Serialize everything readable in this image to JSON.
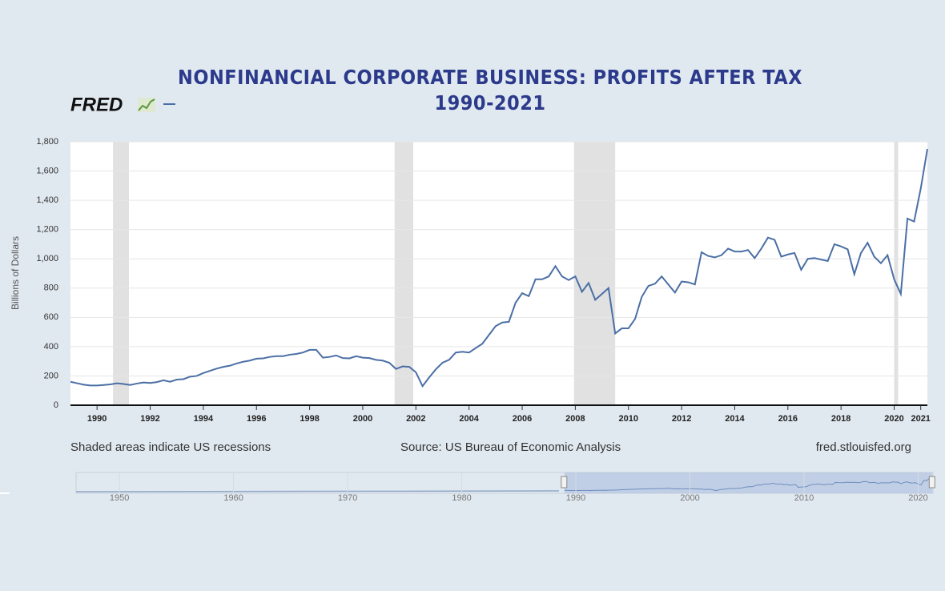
{
  "logo": "FRED",
  "chart_data": {
    "type": "line",
    "title": "NONFINANCIAL CORPORATE BUSINESS: PROFITS AFTER TAX",
    "subtitle": "1990-2021",
    "y_label": "Billions of Dollars",
    "note": "Shaded areas indicate US recessions",
    "source": "Source: US Bureau of Economic Analysis",
    "site": "fred.stlouisfed.org",
    "xlim": [
      1989,
      2021.25
    ],
    "ylim": [
      0,
      1800
    ],
    "yticks": [
      0,
      200,
      400,
      600,
      800,
      {
        "value": 1000,
        "label": "1,000"
      },
      {
        "value": 1200,
        "label": "1,200"
      },
      {
        "value": 1400,
        "label": "1,400"
      },
      {
        "value": 1600,
        "label": "1,600"
      },
      {
        "value": 1800,
        "label": "1,800"
      }
    ],
    "xticks": [
      1990,
      1992,
      1994,
      1996,
      1998,
      2000,
      2002,
      2004,
      2006,
      2008,
      2010,
      2012,
      2014,
      2016,
      2018,
      2020,
      2021
    ],
    "grid": true,
    "recessions": [
      [
        1990.6,
        1991.2
      ],
      [
        2001.2,
        2001.9
      ],
      [
        2007.95,
        2009.5
      ],
      [
        2020.0,
        2020.15
      ]
    ],
    "recession_color": "#e1e1e1",
    "x": [
      1989,
      1989.25,
      1989.5,
      1989.75,
      1990,
      1990.25,
      1990.5,
      1990.75,
      1991,
      1991.25,
      1991.5,
      1991.75,
      1992,
      1992.25,
      1992.5,
      1992.75,
      1993,
      1993.25,
      1993.5,
      1993.75,
      1994,
      1994.25,
      1994.5,
      1994.75,
      1995,
      1995.25,
      1995.5,
      1995.75,
      1996,
      1996.25,
      1996.5,
      1996.75,
      1997,
      1997.25,
      1997.5,
      1997.75,
      1998,
      1998.25,
      1998.5,
      1998.75,
      1999,
      1999.25,
      1999.5,
      1999.75,
      2000,
      2000.25,
      2000.5,
      2000.75,
      2001,
      2001.25,
      2001.5,
      2001.75,
      2002,
      2002.25,
      2002.5,
      2002.75,
      2003,
      2003.25,
      2003.5,
      2003.75,
      2004,
      2004.25,
      2004.5,
      2004.75,
      2005,
      2005.25,
      2005.5,
      2005.75,
      2006,
      2006.25,
      2006.5,
      2006.75,
      2007,
      2007.25,
      2007.5,
      2007.75,
      2008,
      2008.25,
      2008.5,
      2008.75,
      2009,
      2009.25,
      2009.5,
      2009.75,
      2010,
      2010.25,
      2010.5,
      2010.75,
      2011,
      2011.25,
      2011.5,
      2011.75,
      2012,
      2012.25,
      2012.5,
      2012.75,
      2013,
      2013.25,
      2013.5,
      2013.75,
      2014,
      2014.25,
      2014.5,
      2014.75,
      2015,
      2015.25,
      2015.5,
      2015.75,
      2016,
      2016.25,
      2016.5,
      2016.75,
      2017,
      2017.25,
      2017.5,
      2017.75,
      2018,
      2018.25,
      2018.5,
      2018.75,
      2019,
      2019.25,
      2019.5,
      2019.75,
      2020,
      2020.25,
      2020.5,
      2020.75,
      2021,
      2021.25
    ],
    "series": [
      {
        "name": "Profits After Tax",
        "color": "#4b6fa5",
        "values": [
          160,
          150,
          140,
          135,
          135,
          138,
          142,
          150,
          145,
          138,
          148,
          155,
          152,
          158,
          170,
          160,
          175,
          178,
          195,
          200,
          220,
          235,
          250,
          262,
          270,
          285,
          297,
          305,
          318,
          320,
          330,
          335,
          335,
          345,
          350,
          360,
          378,
          378,
          325,
          330,
          340,
          322,
          320,
          335,
          325,
          322,
          310,
          305,
          290,
          248,
          265,
          262,
          225,
          130,
          190,
          245,
          290,
          310,
          360,
          365,
          360,
          390,
          420,
          480,
          540,
          565,
          570,
          700,
          765,
          745,
          860,
          860,
          880,
          950,
          880,
          855,
          880,
          775,
          835,
          720,
          760,
          800,
          490,
          525,
          525,
          590,
          740,
          815,
          830,
          880,
          825,
          770,
          845,
          840,
          825,
          1045,
          1020,
          1010,
          1025,
          1070,
          1050,
          1050,
          1060,
          1005,
          1070,
          1145,
          1130,
          1015,
          1030,
          1040,
          925,
          1000,
          1005,
          995,
          985,
          1100,
          1085,
          1065,
          895,
          1040,
          1110,
          1015,
          970,
          1025,
          860,
          760,
          1275,
          1255,
          1480,
          1750
        ]
      }
    ],
    "navigator": {
      "xlim": [
        1946.2,
        2021.3
      ],
      "xticks": [
        1950,
        1960,
        1970,
        1980,
        1990,
        2000,
        2010,
        2020
      ]
    }
  }
}
